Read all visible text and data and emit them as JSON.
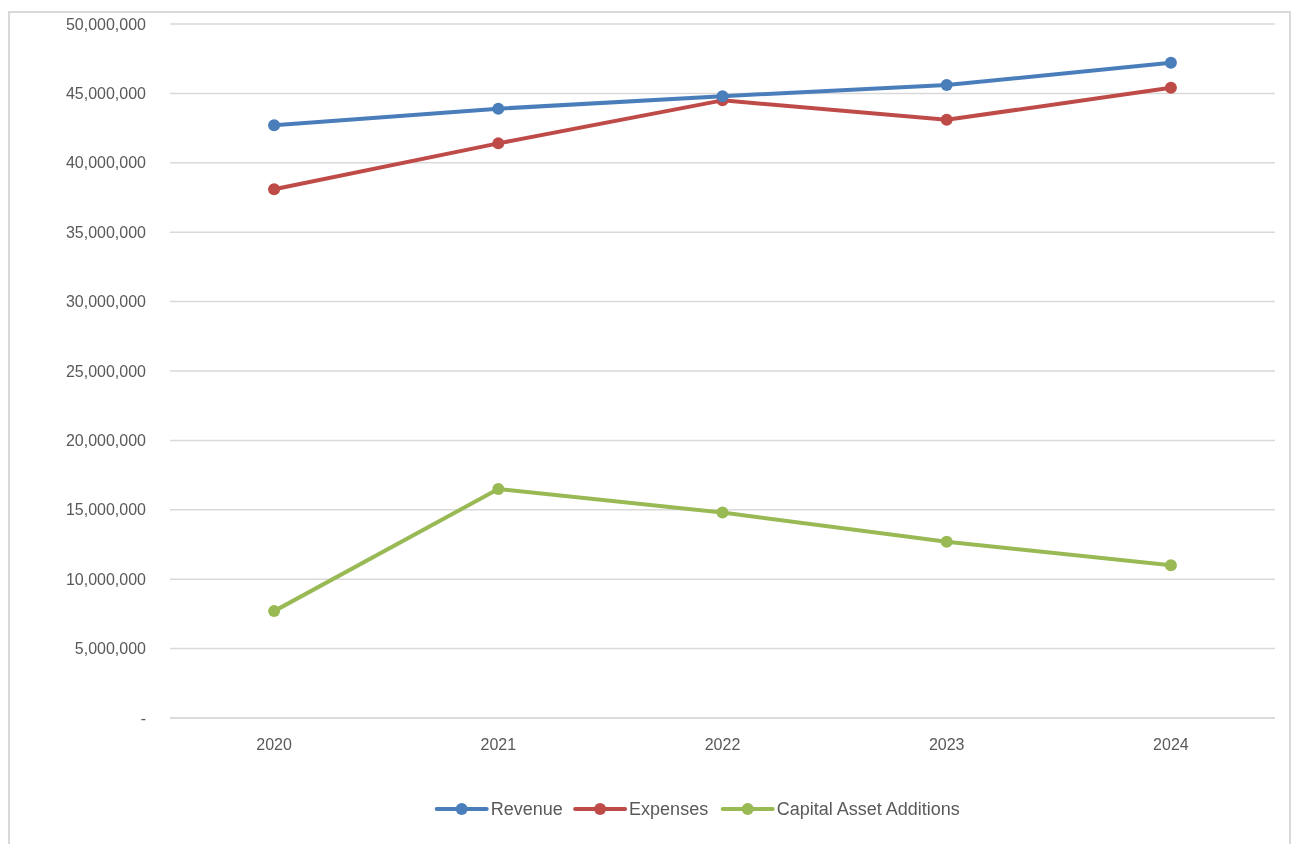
{
  "chart_data": {
    "type": "line",
    "categories": [
      "2020",
      "2021",
      "2022",
      "2023",
      "2024"
    ],
    "series": [
      {
        "name": "Revenue",
        "color": "#4a7ebb",
        "values": [
          42700000,
          43900000,
          44800000,
          45600000,
          47200000
        ]
      },
      {
        "name": "Expenses",
        "color": "#be4b48",
        "values": [
          38100000,
          41400000,
          44500000,
          43100000,
          45400000
        ]
      },
      {
        "name": "Capital Asset Additions",
        "color": "#98b954",
        "values": [
          7700000,
          16500000,
          14800000,
          12700000,
          11000000
        ]
      }
    ],
    "ylim": [
      0,
      50000000
    ],
    "yticks": [
      {
        "value": 0,
        "label": "-"
      },
      {
        "value": 5000000,
        "label": "5,000,000"
      },
      {
        "value": 10000000,
        "label": "10,000,000"
      },
      {
        "value": 15000000,
        "label": "15,000,000"
      },
      {
        "value": 20000000,
        "label": "20,000,000"
      },
      {
        "value": 25000000,
        "label": "25,000,000"
      },
      {
        "value": 30000000,
        "label": "30,000,000"
      },
      {
        "value": 35000000,
        "label": "35,000,000"
      },
      {
        "value": 40000000,
        "label": "40,000,000"
      },
      {
        "value": 45000000,
        "label": "45,000,000"
      },
      {
        "value": 50000000,
        "label": "50,000,000"
      }
    ],
    "grid": "y",
    "legend": "bottom",
    "marker": "circle",
    "line_style": "solid"
  }
}
